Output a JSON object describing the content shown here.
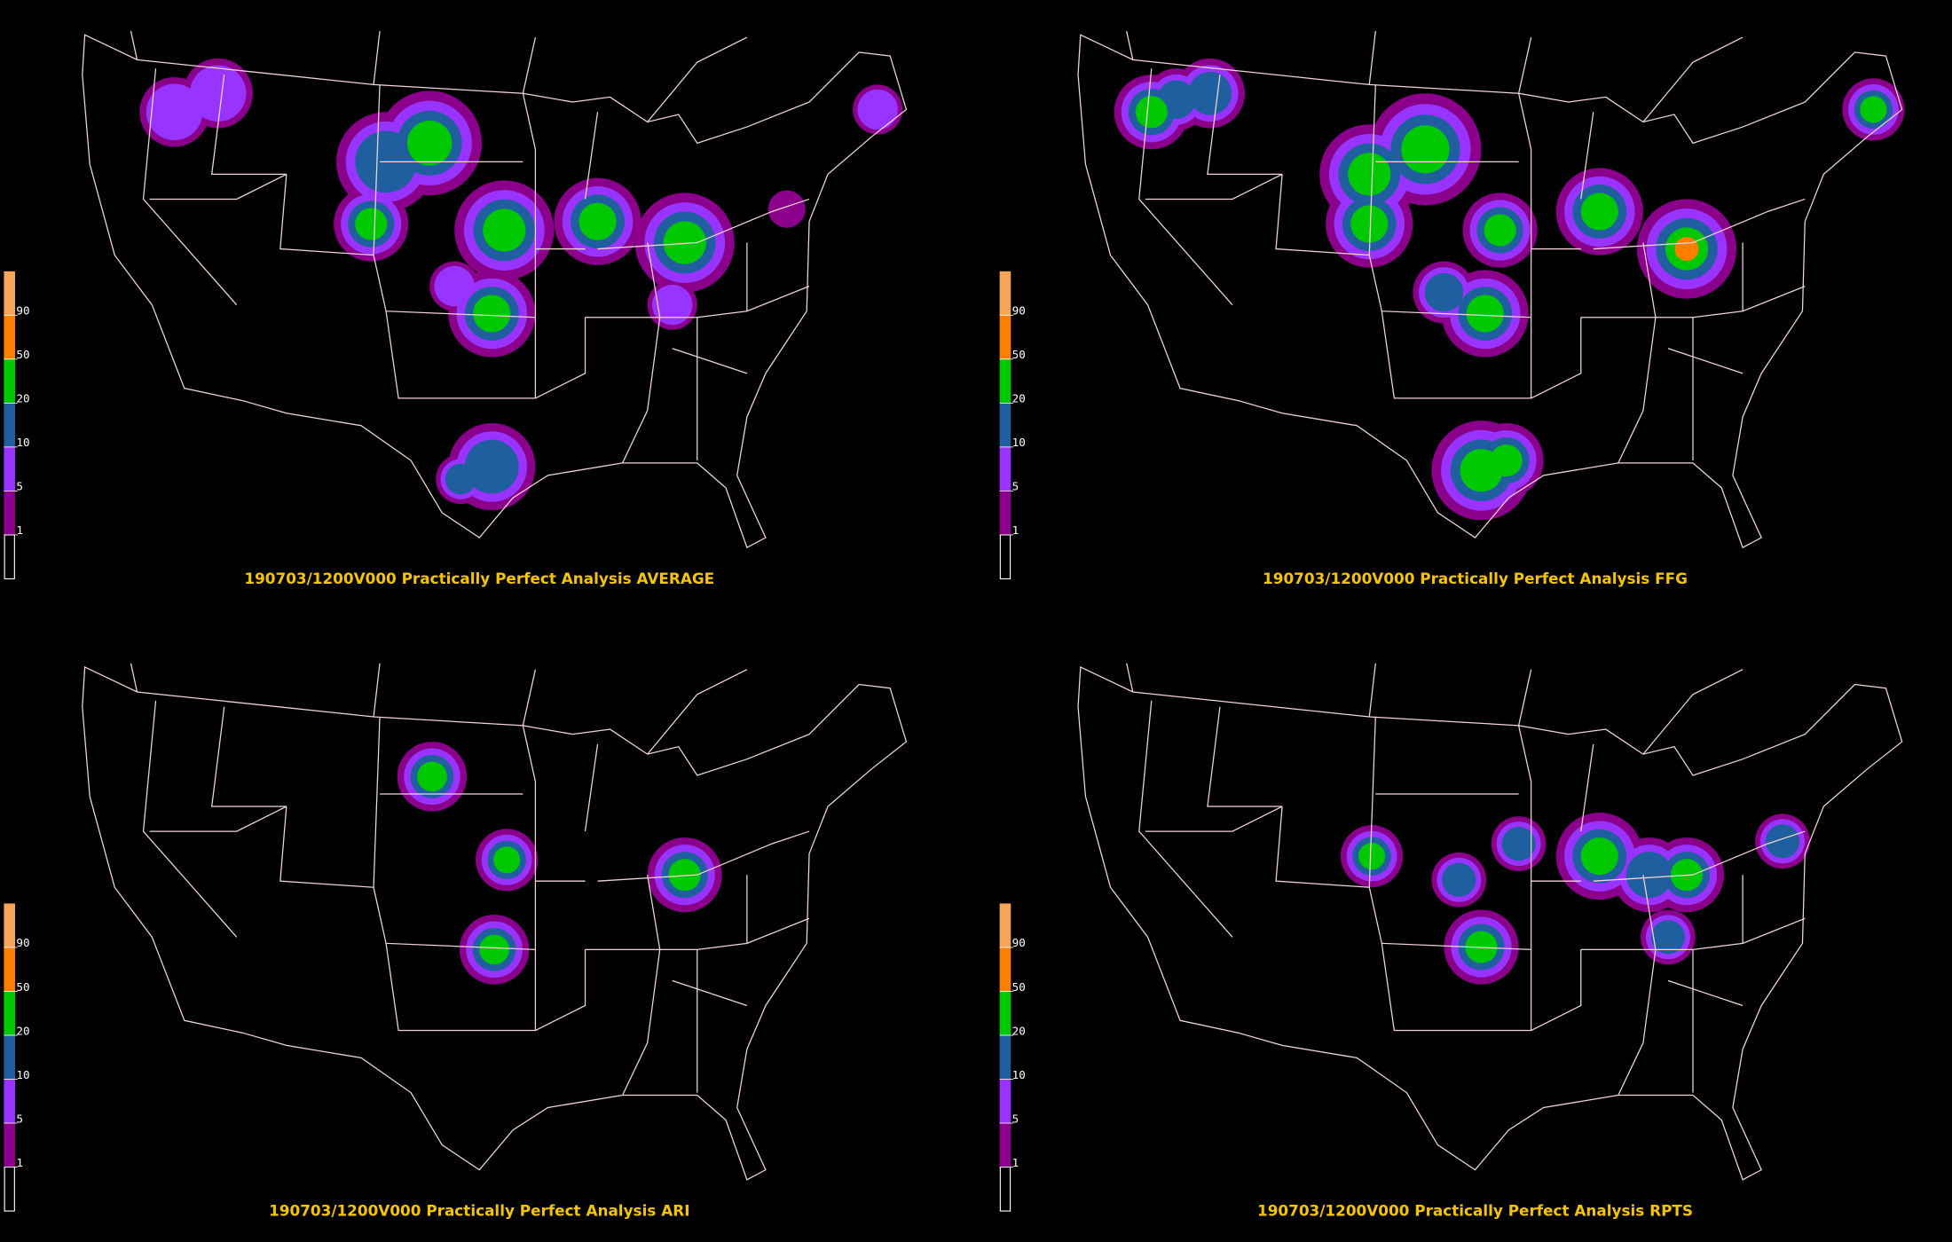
{
  "colorbar": {
    "levels": [
      1,
      5,
      10,
      20,
      50,
      90
    ],
    "colors": [
      "#8b008b",
      "#9933ff",
      "#1f5f9f",
      "#00c800",
      "#ff7f00",
      "#f5a55a"
    ]
  },
  "panels": [
    {
      "title": "190703/1200V000 Practically Perfect Analysis AVERAGE"
    },
    {
      "title": "190703/1200V000 Practically Perfect Analysis FFG"
    },
    {
      "title": "190703/1200V000 Practically Perfect Analysis ARI"
    },
    {
      "title": "190703/1200V000 Practically Perfect Analysis RPTS"
    }
  ]
}
